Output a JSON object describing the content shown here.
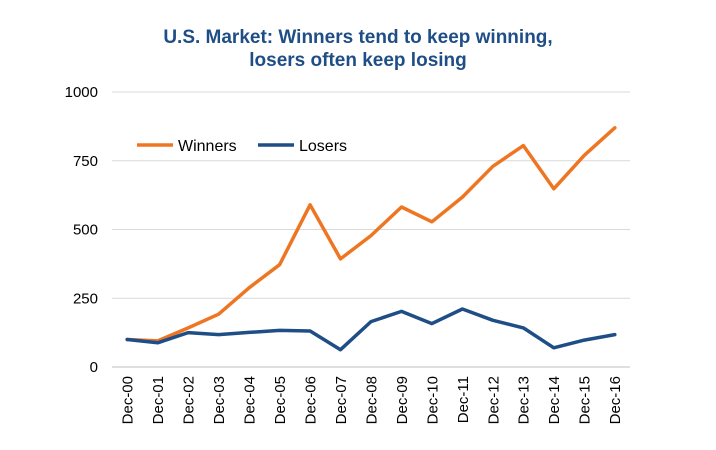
{
  "chart_data": {
    "type": "line",
    "title_lines": [
      "U.S. Market: Winners tend to keep winning,",
      "losers often keep losing"
    ],
    "xlabel": "",
    "ylabel": "",
    "categories": [
      "Dec-00",
      "Dec-01",
      "Dec-02",
      "Dec-03",
      "Dec-04",
      "Dec-05",
      "Dec-06",
      "Dec-07",
      "Dec-08",
      "Dec-09",
      "Dec-10",
      "Dec-11",
      "Dec-12",
      "Dec-13",
      "Dec-14",
      "Dec-15",
      "Dec-16"
    ],
    "ylim": [
      0,
      1000
    ],
    "yticks": [
      0,
      250,
      500,
      750,
      1000
    ],
    "grid": true,
    "legend_position": "top-left",
    "series": [
      {
        "name": "Winners",
        "color": "#ee7623",
        "values": [
          100,
          95,
          142,
          192,
          288,
          372,
          590,
          393,
          478,
          582,
          528,
          618,
          730,
          805,
          648,
          770,
          870
        ]
      },
      {
        "name": "Losers",
        "color": "#1f4e87",
        "values": [
          100,
          88,
          125,
          118,
          126,
          133,
          131,
          63,
          165,
          202,
          158,
          211,
          170,
          142,
          70,
          98,
          118
        ]
      }
    ]
  }
}
